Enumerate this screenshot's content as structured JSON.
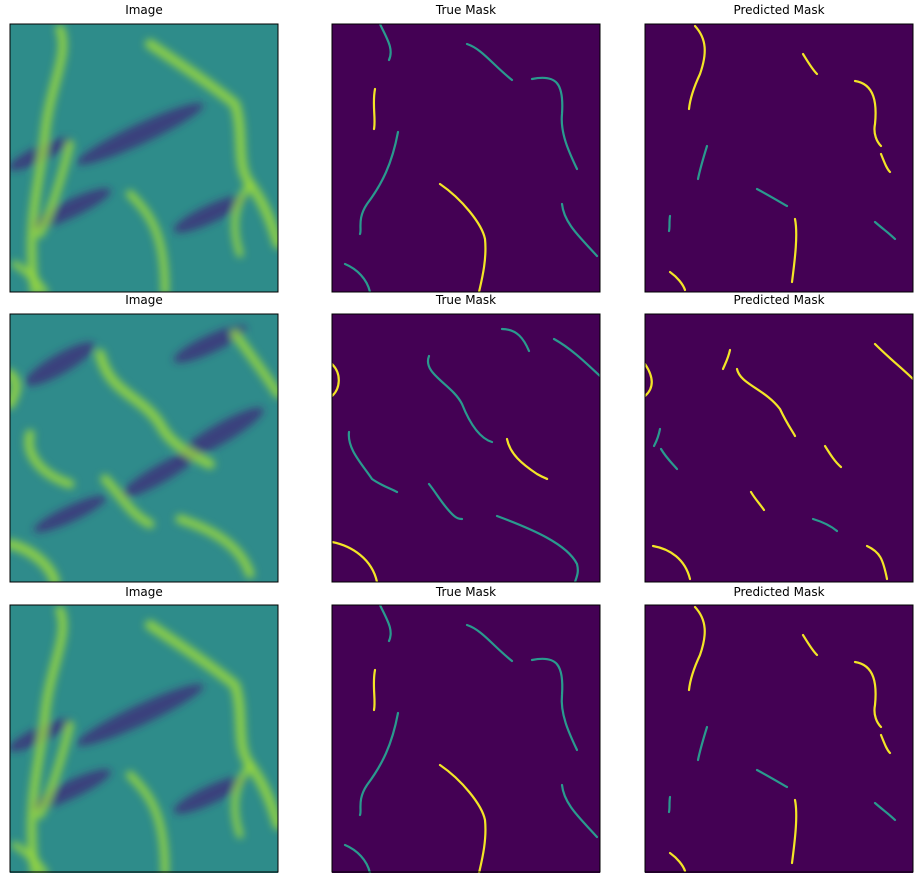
{
  "rows": [
    [
      "Image",
      "True Mask",
      "Predicted Mask"
    ],
    [
      "Image",
      "True Mask",
      "Predicted Mask"
    ],
    [
      "Image",
      "True Mask",
      "Predicted Mask"
    ]
  ]
}
